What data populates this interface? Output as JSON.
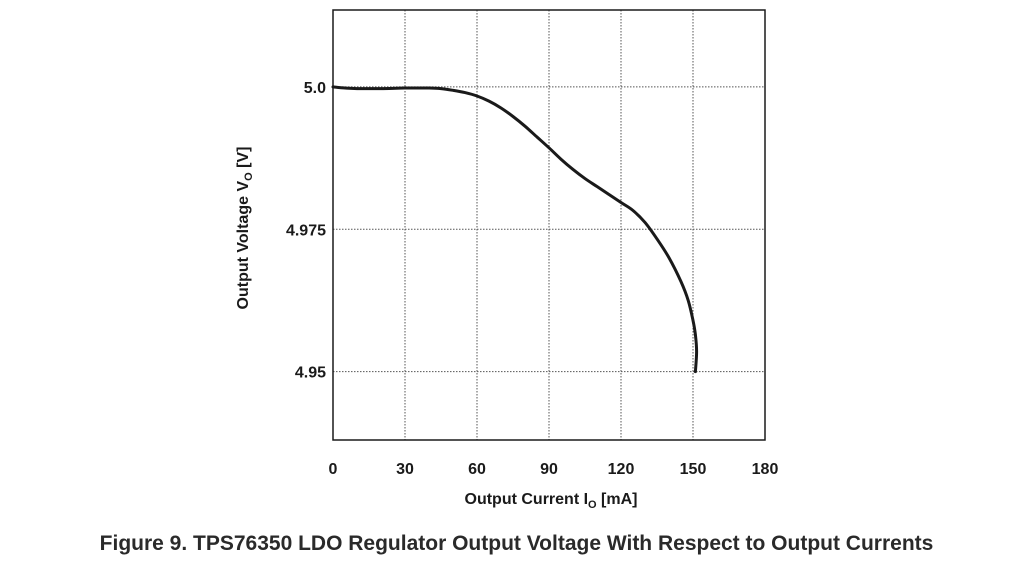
{
  "figure": {
    "caption": "Figure 9.  TPS76350 LDO Regulator Output Voltage With Respect to Output Currents"
  },
  "chart_data": {
    "type": "line",
    "xlabel": {
      "main": "Output Current I",
      "subscript": "O",
      "unit": " [mA]"
    },
    "ylabel": {
      "main": "Output Voltage V",
      "subscript": "O",
      "unit": " [V]"
    },
    "xlim": [
      0,
      180
    ],
    "ylim": [
      4.938,
      5.0135
    ],
    "x_ticks": [
      0,
      30,
      60,
      90,
      120,
      150,
      180
    ],
    "x_tick_labels": [
      "0",
      "30",
      "60",
      "90",
      "120",
      "150",
      "180"
    ],
    "y_ticks": [
      4.95,
      4.975,
      5.0
    ],
    "y_tick_labels": [
      "4.95",
      "4.975",
      "5.0"
    ],
    "grid": true,
    "line_color": "#1a1a1a",
    "series": [
      {
        "x": [
          0,
          5,
          10,
          20,
          30,
          40,
          45,
          50,
          55,
          60,
          65,
          70,
          75,
          80,
          85,
          90,
          95,
          100,
          105,
          110,
          115,
          120,
          125,
          130,
          135,
          140,
          145,
          148,
          150,
          151,
          151.5,
          151
        ],
        "y": [
          5.0,
          4.9998,
          4.9997,
          4.9997,
          4.9998,
          4.9998,
          4.9997,
          4.9994,
          4.999,
          4.9984,
          4.9975,
          4.9963,
          4.9948,
          4.9931,
          4.9912,
          4.9893,
          4.9873,
          4.9855,
          4.9839,
          4.9825,
          4.9811,
          4.9797,
          4.9783,
          4.9762,
          4.9733,
          4.97,
          4.9658,
          4.9625,
          4.959,
          4.9565,
          4.9535,
          4.95
        ]
      }
    ]
  }
}
